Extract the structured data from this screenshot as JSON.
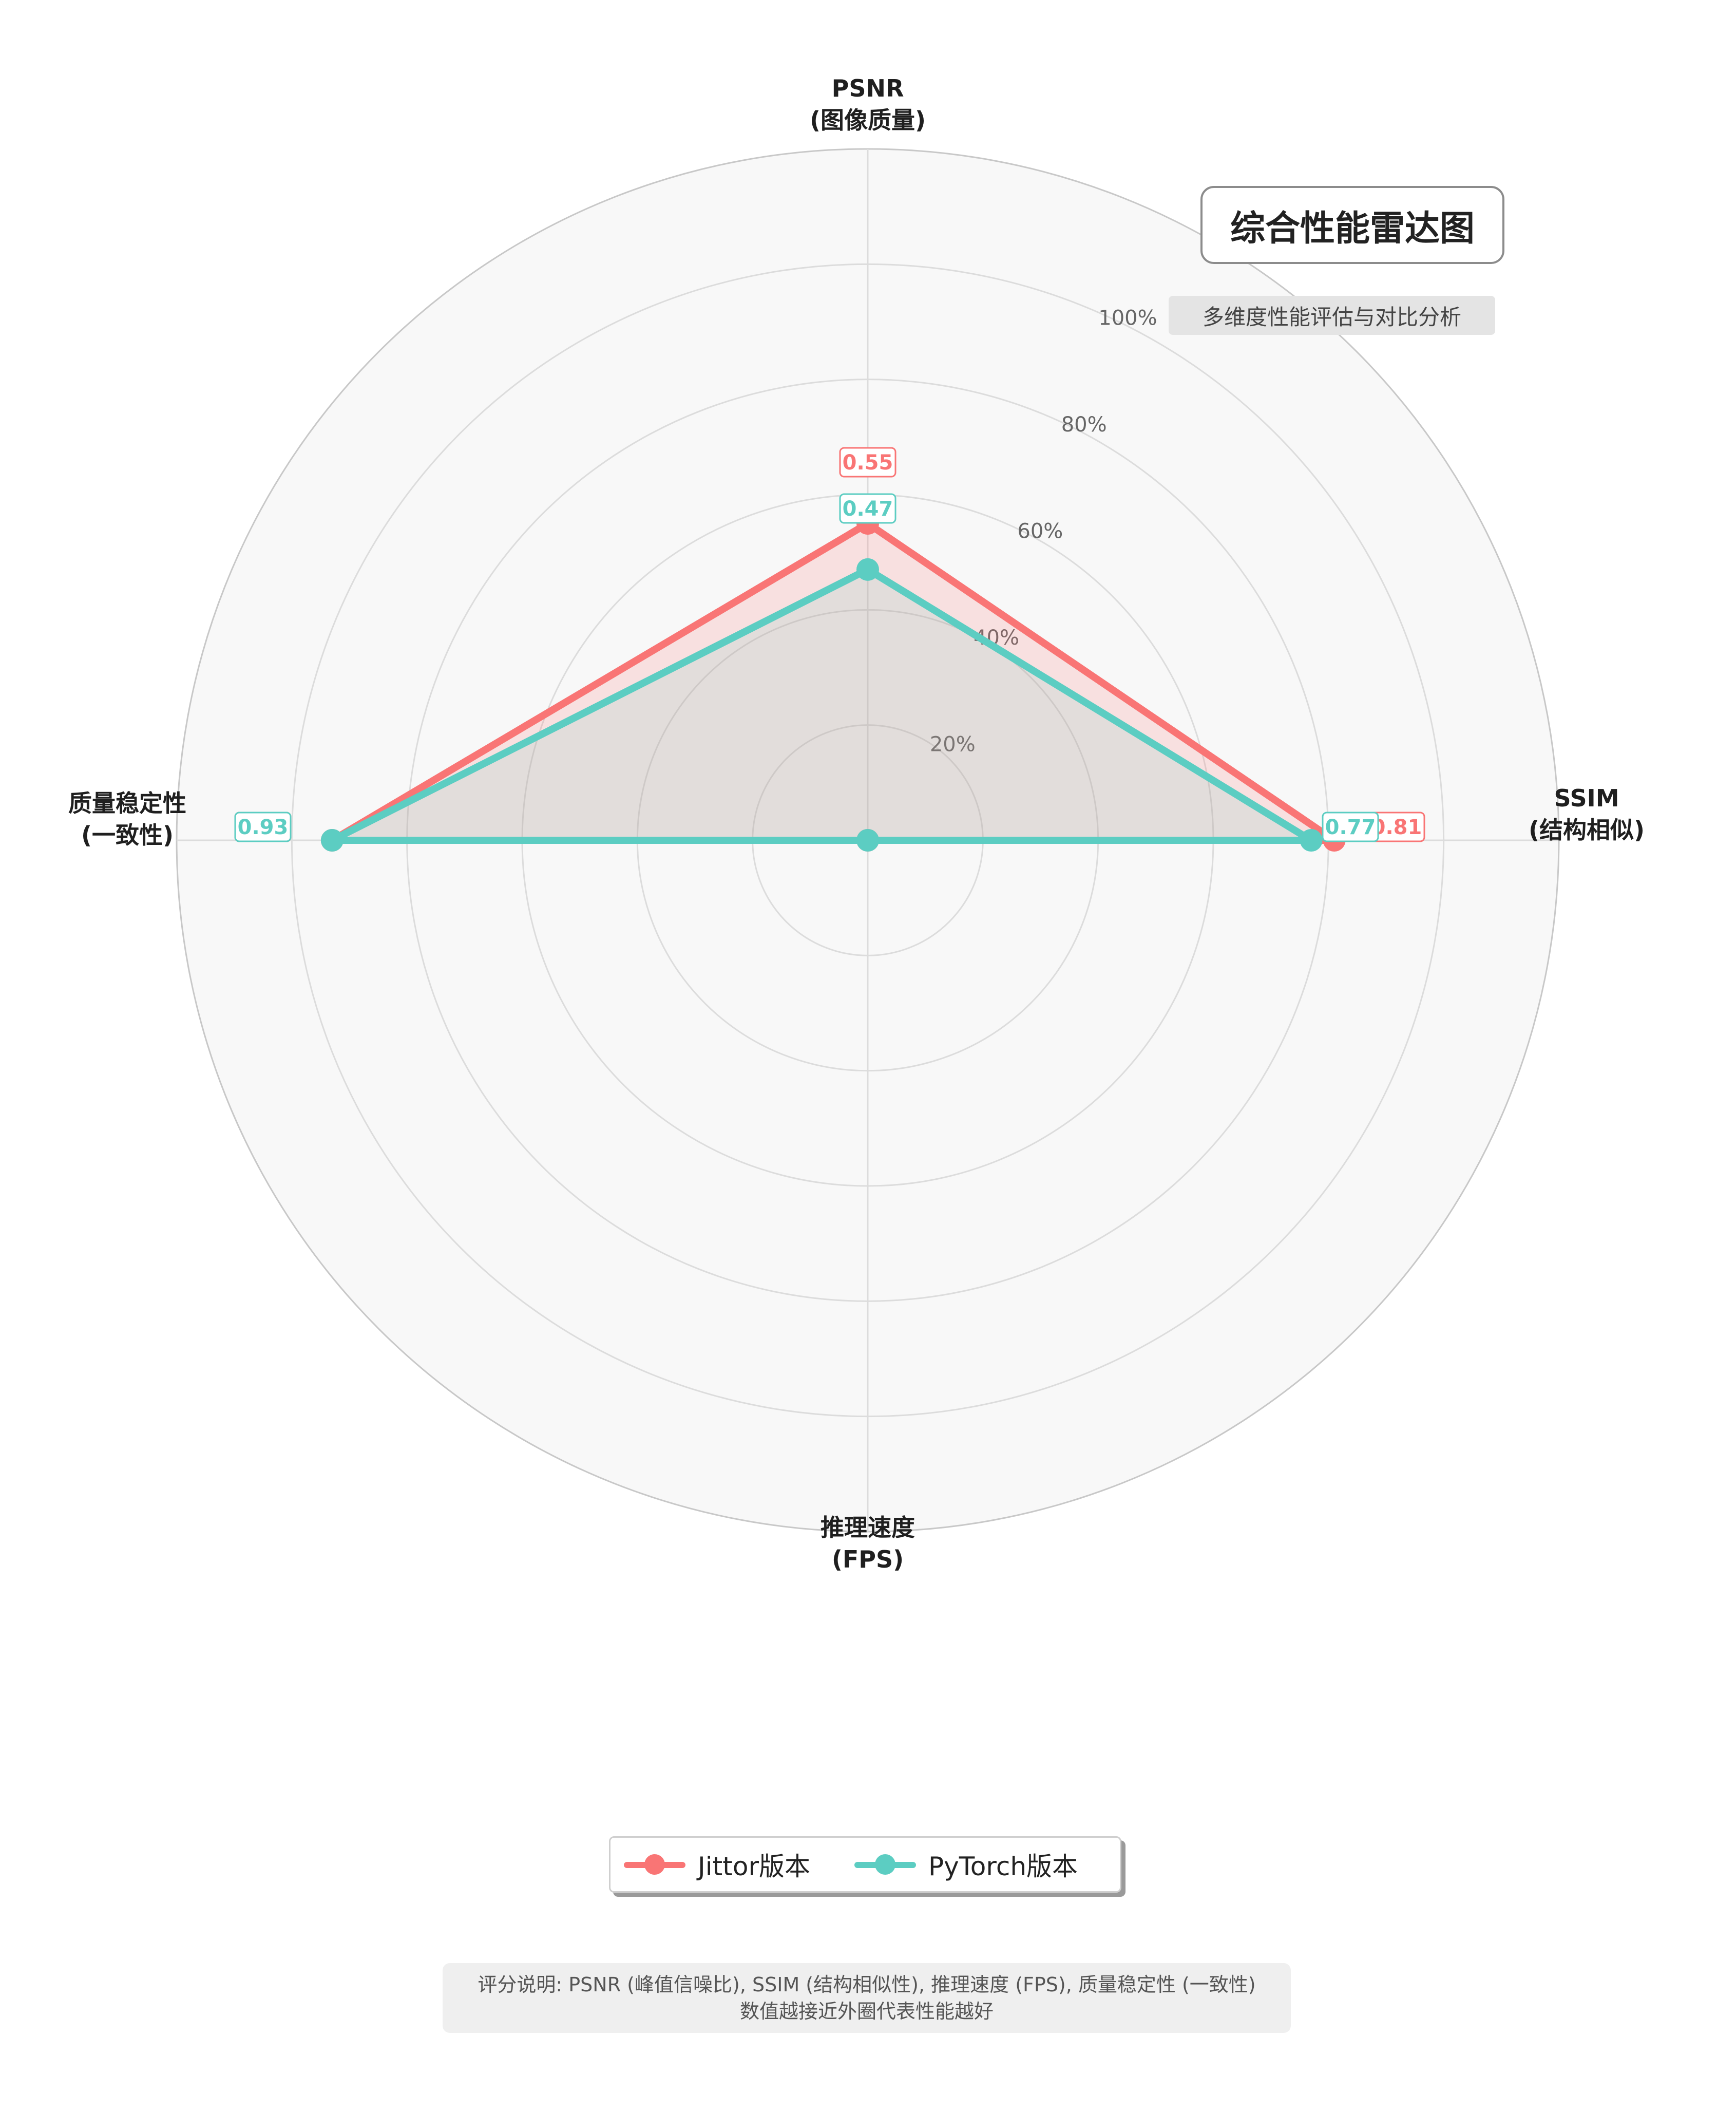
{
  "chart_data": {
    "type": "radar",
    "title": "综合性能雷达图",
    "subtitle": "多维度性能评估与对比分析",
    "axes": [
      "PSNR\n(图像质量)",
      "SSIM\n(结构相似)",
      "推理速度\n(FPS)",
      "质量稳定性\n(一致性)"
    ],
    "radial_ticks": [
      0.2,
      0.4,
      0.6,
      0.8,
      1.0
    ],
    "radial_tick_labels": [
      "20%",
      "40%",
      "60%",
      "80%",
      "100%"
    ],
    "rlim": [
      0,
      1.2
    ],
    "grid": true,
    "series": [
      {
        "name": "Jittor版本",
        "color": "#f97575",
        "values": [
          0.55,
          0.81,
          0.0,
          0.93
        ],
        "value_labels": [
          "0.55",
          "0.81",
          "",
          "0.93"
        ]
      },
      {
        "name": "PyTorch版本",
        "color": "#5ccdc2",
        "values": [
          0.47,
          0.77,
          0.0,
          0.93
        ],
        "value_labels": [
          "0.47",
          "0.77",
          "",
          "0.93"
        ]
      }
    ],
    "legend_position": "bottom-center"
  },
  "footnote": {
    "line1": "评分说明: PSNR (峰值信噪比), SSIM (结构相似性), 推理速度 (FPS), 质量稳定性 (一致性)",
    "line2": "数值越接近外圈代表性能越好"
  }
}
